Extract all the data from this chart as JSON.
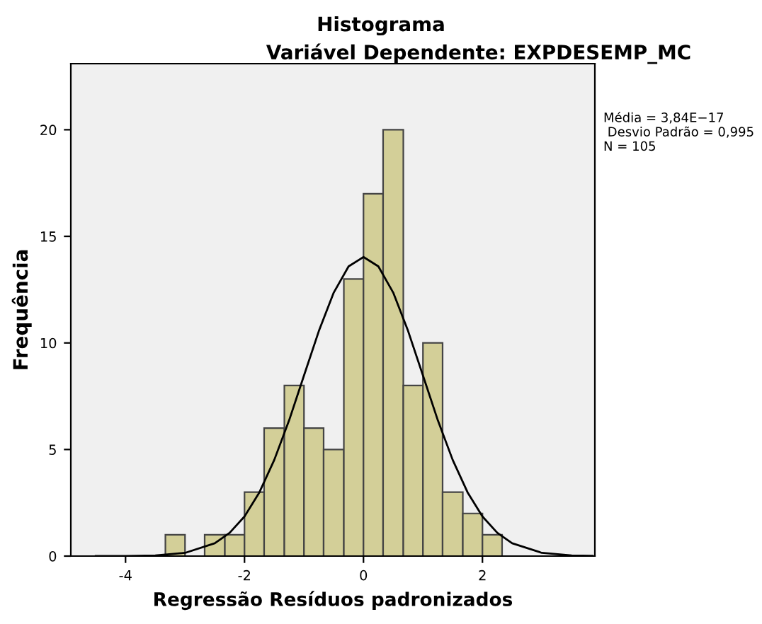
{
  "chart_data": {
    "type": "histogram",
    "title": "Histograma",
    "subtitle": "Variável Dependente: EXPDESEMP_MC",
    "xlabel": "Regressão Resíduos padronizados",
    "ylabel": "Frequência",
    "annotations": [
      "Média = 3,84E−17\n Desvio Padrão = 0,995\nN = 105"
    ],
    "bins": [
      -3.33,
      -3.0,
      -2.67,
      -2.33,
      -2.0,
      -1.67,
      -1.33,
      -1.0,
      -0.67,
      -0.33,
      0.0,
      0.33,
      0.67,
      1.0,
      1.33,
      1.67,
      2.0,
      2.33
    ],
    "values": [
      1,
      0,
      1,
      1,
      3,
      6,
      8,
      6,
      5,
      13,
      17,
      20,
      8,
      10,
      3,
      2,
      1
    ],
    "color": "#d3cf98",
    "series": [
      {
        "type": "line",
        "color": "#000000",
        "x": [
          -4.5,
          -4.0,
          -3.5,
          -3.0,
          -2.5,
          -2.25,
          -2.0,
          -1.75,
          -1.5,
          -1.25,
          -1.0,
          -0.75,
          -0.5,
          -0.25,
          0.0,
          0.25,
          0.5,
          0.75,
          1.0,
          1.25,
          1.5,
          1.75,
          2.0,
          2.25,
          2.5,
          3.0,
          3.5,
          3.85
        ],
        "values": [
          0.0,
          0.0,
          0.03,
          0.15,
          0.6,
          1.09,
          1.86,
          2.99,
          4.51,
          6.37,
          8.47,
          10.56,
          12.36,
          13.59,
          14.03,
          13.59,
          12.36,
          10.56,
          8.47,
          6.37,
          4.51,
          2.99,
          1.86,
          1.09,
          0.6,
          0.15,
          0.03,
          0.01
        ]
      }
    ],
    "xlim": [
      -4.92,
      3.89
    ],
    "ylim": [
      0,
      23.1
    ],
    "xticks": [
      -4,
      -2,
      0,
      2
    ],
    "yticks": [
      0,
      5,
      10,
      15,
      20
    ],
    "grid": false,
    "legend": false
  }
}
